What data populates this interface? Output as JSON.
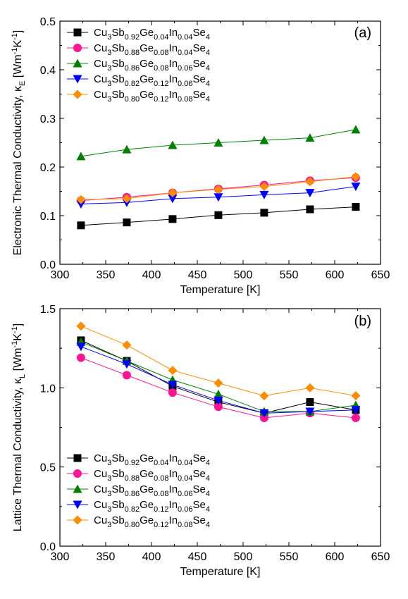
{
  "chart_data": [
    {
      "type": "line",
      "panel_label": "(a)",
      "xlabel": "Temperature [K]",
      "ylabel": "Electronic Thermal Conductivity, κ",
      "ylabel_sub": "E",
      "ylabel_unit": " [Wm",
      "ylabel_unit_sup1": "-1",
      "ylabel_unit_mid": "K",
      "ylabel_unit_sup2": "-1",
      "ylabel_unit_end": "]",
      "xlim": [
        300,
        650
      ],
      "ylim": [
        0.0,
        0.5
      ],
      "xticks": [
        "300",
        "350",
        "400",
        "450",
        "500",
        "550",
        "600",
        "650"
      ],
      "yticks": [
        "0.0",
        "0.1",
        "0.2",
        "0.3",
        "0.4",
        "0.5"
      ],
      "x": [
        323,
        373,
        423,
        473,
        523,
        573,
        623
      ],
      "legend_position": "top-left",
      "series": [
        {
          "name": "Cu3Sb0.92Ge0.04In0.04Se4",
          "color": "#000000",
          "marker": "square",
          "values": [
            0.08,
            0.086,
            0.093,
            0.101,
            0.106,
            0.113,
            0.118
          ]
        },
        {
          "name": "Cu3Sb0.88Ge0.08In0.04Se4",
          "color": "#ff1493",
          "marker": "circle",
          "values": [
            0.131,
            0.138,
            0.147,
            0.155,
            0.163,
            0.172,
            0.178
          ]
        },
        {
          "name": "Cu3Sb0.86Ge0.08In0.06Se4",
          "color": "#008000",
          "marker": "triangle-up",
          "values": [
            0.222,
            0.236,
            0.245,
            0.25,
            0.255,
            0.26,
            0.277
          ]
        },
        {
          "name": "Cu3Sb0.82Ge0.12In0.06Se4",
          "color": "#0000ff",
          "marker": "triangle-down",
          "values": [
            0.124,
            0.127,
            0.135,
            0.138,
            0.143,
            0.147,
            0.16
          ]
        },
        {
          "name": "Cu3Sb0.80Ge0.12In0.08Se4",
          "color": "#ff8c00",
          "marker": "diamond",
          "values": [
            0.133,
            0.135,
            0.147,
            0.154,
            0.16,
            0.17,
            0.18
          ]
        }
      ]
    },
    {
      "type": "line",
      "panel_label": "(b)",
      "xlabel": "Temperature [K]",
      "ylabel": "Lattice Thermal Conductivity, κ",
      "ylabel_sub": "L",
      "ylabel_unit": " [Wm",
      "ylabel_unit_sup1": "-1",
      "ylabel_unit_mid": "K",
      "ylabel_unit_sup2": "-1",
      "ylabel_unit_end": "]",
      "xlim": [
        300,
        650
      ],
      "ylim": [
        0.0,
        1.5
      ],
      "xticks": [
        "300",
        "350",
        "400",
        "450",
        "500",
        "550",
        "600",
        "650"
      ],
      "yticks": [
        "0.0",
        "0.5",
        "1.0",
        "1.5"
      ],
      "x": [
        323,
        373,
        423,
        473,
        523,
        573,
        623
      ],
      "legend_position": "bottom-left",
      "series": [
        {
          "name": "Cu3Sb0.92Ge0.04In0.04Se4",
          "color": "#000000",
          "marker": "square",
          "values": [
            1.3,
            1.17,
            1.01,
            0.91,
            0.84,
            0.91,
            0.86
          ]
        },
        {
          "name": "Cu3Sb0.88Ge0.08In0.04Se4",
          "color": "#ff1493",
          "marker": "circle",
          "values": [
            1.19,
            1.08,
            0.97,
            0.88,
            0.81,
            0.84,
            0.81
          ]
        },
        {
          "name": "Cu3Sb0.86Ge0.08In0.06Se4",
          "color": "#008000",
          "marker": "triangle-up",
          "values": [
            1.29,
            1.17,
            1.05,
            0.96,
            0.85,
            0.85,
            0.89
          ]
        },
        {
          "name": "Cu3Sb0.82Ge0.12In0.06Se4",
          "color": "#0000ff",
          "marker": "triangle-down",
          "values": [
            1.26,
            1.15,
            1.02,
            0.92,
            0.84,
            0.85,
            0.86
          ]
        },
        {
          "name": "Cu3Sb0.80Ge0.12In0.08Se4",
          "color": "#ff8c00",
          "marker": "diamond",
          "values": [
            1.39,
            1.27,
            1.11,
            1.03,
            0.95,
            1.0,
            0.95
          ]
        }
      ]
    }
  ],
  "legend_formula_parts": [
    [
      [
        "Cu",
        ""
      ],
      [
        "3",
        "sub"
      ],
      [
        "Sb",
        ""
      ],
      [
        "0.92",
        "sub"
      ],
      [
        "Ge",
        ""
      ],
      [
        "0.04",
        "sub"
      ],
      [
        "In",
        ""
      ],
      [
        "0.04",
        "sub"
      ],
      [
        "Se",
        ""
      ],
      [
        "4",
        "sub"
      ]
    ],
    [
      [
        "Cu",
        ""
      ],
      [
        "3",
        "sub"
      ],
      [
        "Sb",
        ""
      ],
      [
        "0.88",
        "sub"
      ],
      [
        "Ge",
        ""
      ],
      [
        "0.08",
        "sub"
      ],
      [
        "In",
        ""
      ],
      [
        "0.04",
        "sub"
      ],
      [
        "Se",
        ""
      ],
      [
        "4",
        "sub"
      ]
    ],
    [
      [
        "Cu",
        ""
      ],
      [
        "3",
        "sub"
      ],
      [
        "Sb",
        ""
      ],
      [
        "0.86",
        "sub"
      ],
      [
        "Ge",
        ""
      ],
      [
        "0.08",
        "sub"
      ],
      [
        "In",
        ""
      ],
      [
        "0.06",
        "sub"
      ],
      [
        "Se",
        ""
      ],
      [
        "4",
        "sub"
      ]
    ],
    [
      [
        "Cu",
        ""
      ],
      [
        "3",
        "sub"
      ],
      [
        "Sb",
        ""
      ],
      [
        "0.82",
        "sub"
      ],
      [
        "Ge",
        ""
      ],
      [
        "0.12",
        "sub"
      ],
      [
        "In",
        ""
      ],
      [
        "0.06",
        "sub"
      ],
      [
        "Se",
        ""
      ],
      [
        "4",
        "sub"
      ]
    ],
    [
      [
        "Cu",
        ""
      ],
      [
        "3",
        "sub"
      ],
      [
        "Sb",
        ""
      ],
      [
        "0.80",
        "sub"
      ],
      [
        "Ge",
        ""
      ],
      [
        "0.12",
        "sub"
      ],
      [
        "In",
        ""
      ],
      [
        "0.08",
        "sub"
      ],
      [
        "Se",
        ""
      ],
      [
        "4",
        "sub"
      ]
    ]
  ]
}
